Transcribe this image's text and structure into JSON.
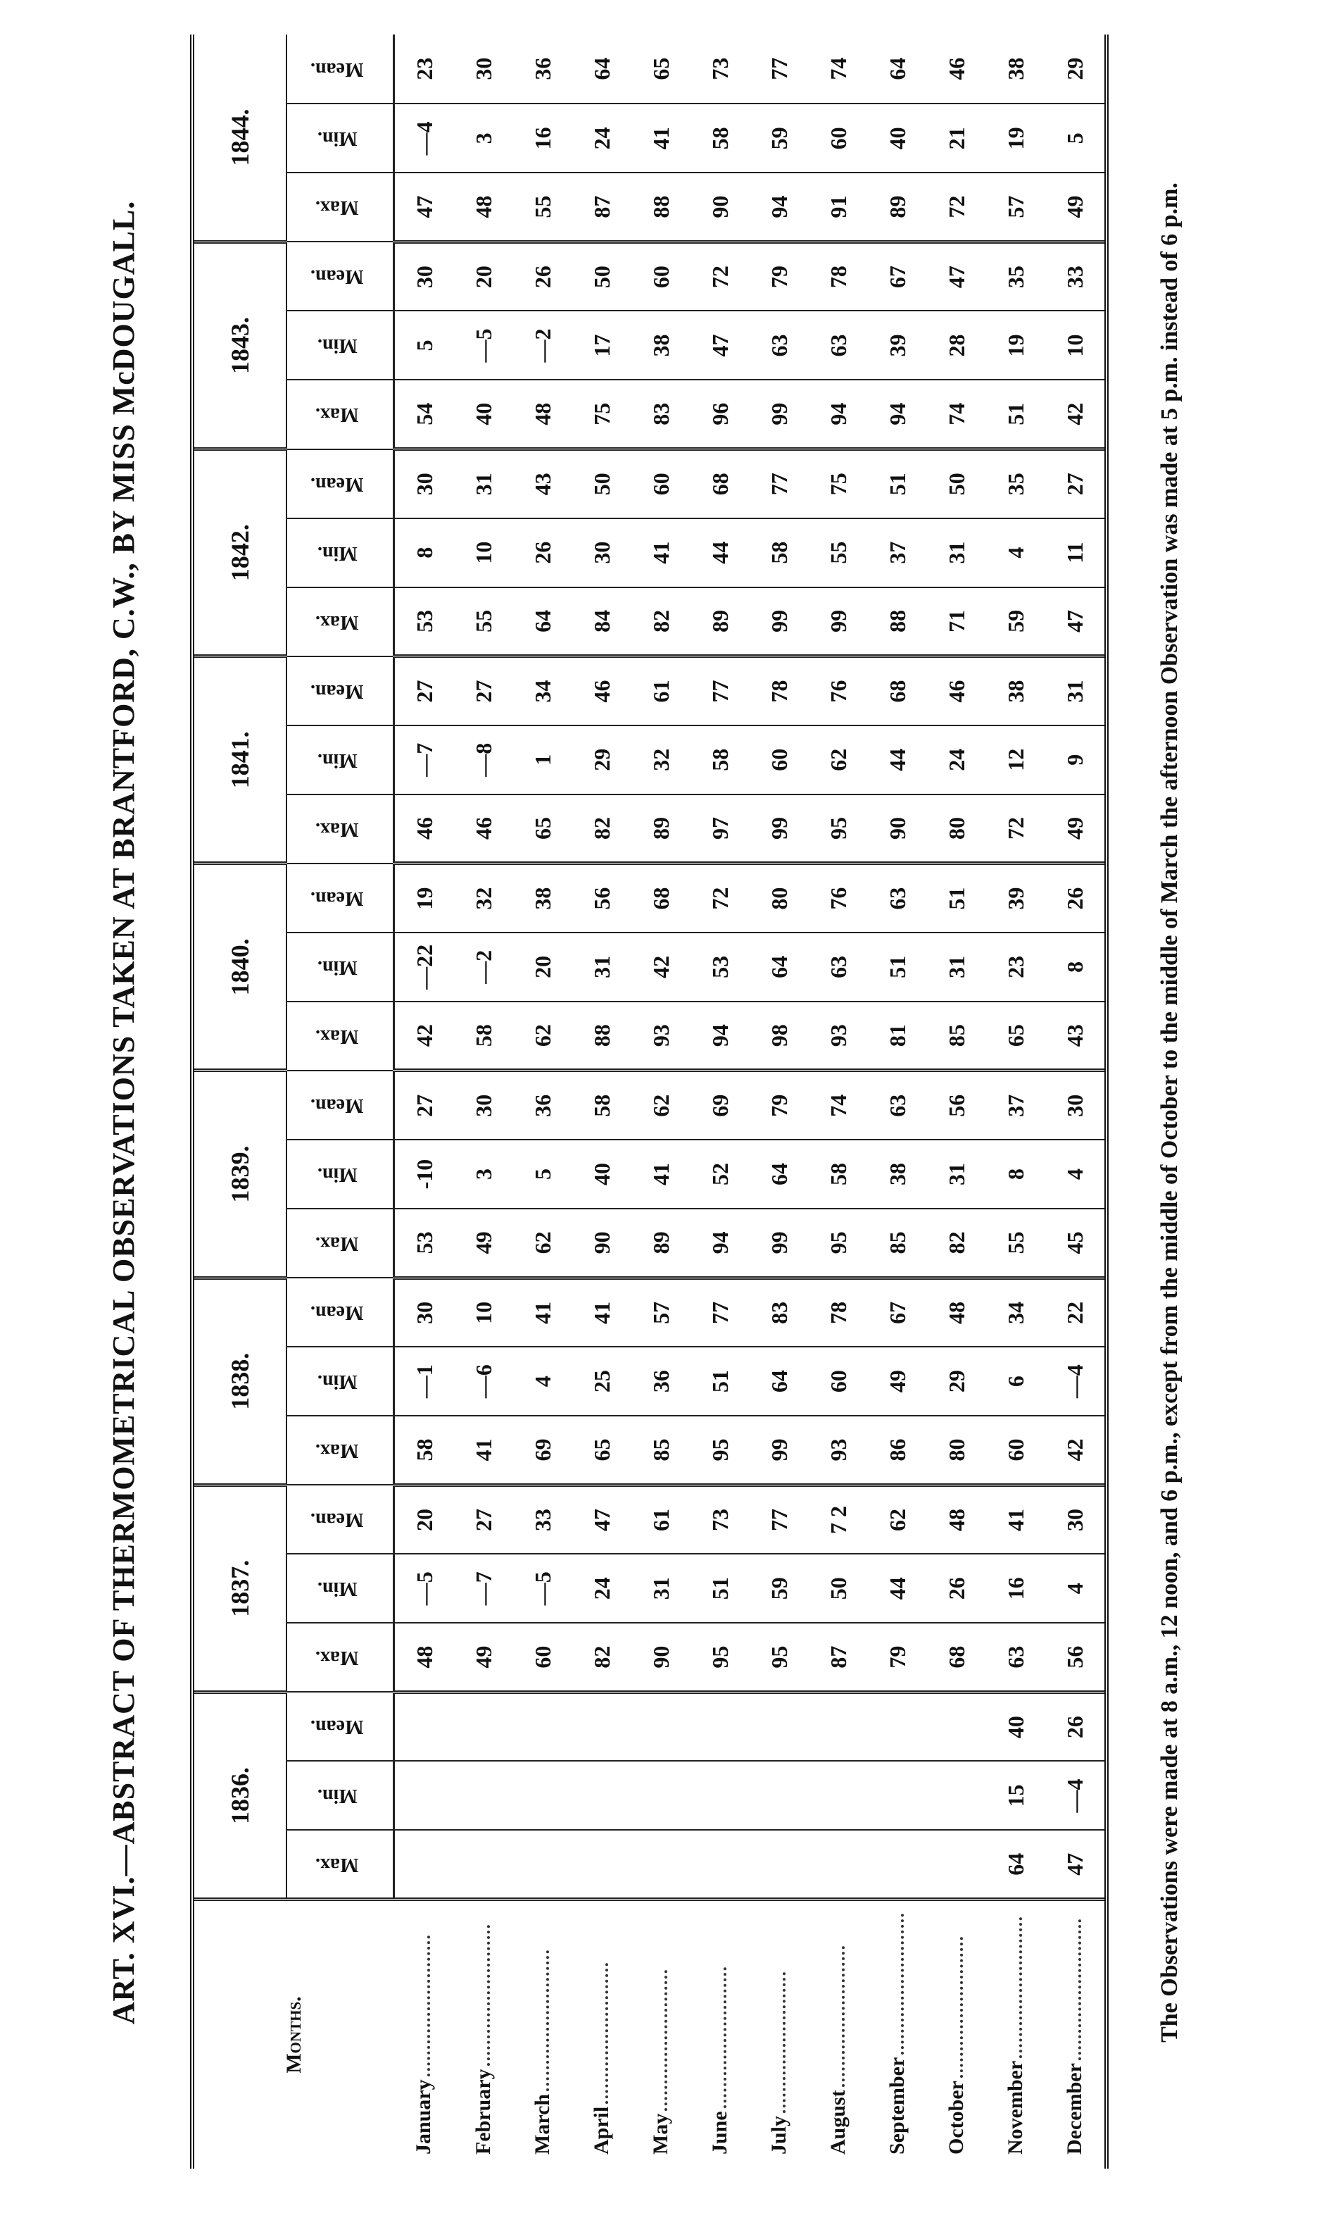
{
  "title": "ART. XVI.—ABSTRACT OF THERMOMETRICAL OBSERVATIONS TAKEN AT BRANTFORD, C.W., BY MISS McDOUGALL.",
  "table": {
    "months_header": "Months.",
    "subheaders": [
      "Max.",
      "Min.",
      "Mean."
    ],
    "years": [
      "1836.",
      "1837.",
      "1838.",
      "1839.",
      "1840.",
      "1841.",
      "1842.",
      "1843.",
      "1844."
    ],
    "rows": [
      {
        "month": "January",
        "values": [
          [
            null,
            null,
            null
          ],
          [
            "48",
            "—5",
            "20"
          ],
          [
            "58",
            "—1",
            "30"
          ],
          [
            "53",
            "-10",
            "27"
          ],
          [
            "42",
            "—22",
            "19"
          ],
          [
            "46",
            "—7",
            "27"
          ],
          [
            "53",
            "8",
            "30"
          ],
          [
            "54",
            "5",
            "30"
          ],
          [
            "47",
            "—4",
            "23"
          ]
        ]
      },
      {
        "month": "February",
        "values": [
          [
            null,
            null,
            null
          ],
          [
            "49",
            "—7",
            "27"
          ],
          [
            "41",
            "—6",
            "10"
          ],
          [
            "49",
            "3",
            "30"
          ],
          [
            "58",
            "—2",
            "32"
          ],
          [
            "46",
            "—8",
            "27"
          ],
          [
            "55",
            "10",
            "31"
          ],
          [
            "40",
            "—5",
            "20"
          ],
          [
            "48",
            "3",
            "30"
          ]
        ]
      },
      {
        "month": "March",
        "values": [
          [
            null,
            null,
            null
          ],
          [
            "60",
            "—5",
            "33"
          ],
          [
            "69",
            "4",
            "41"
          ],
          [
            "62",
            "5",
            "36"
          ],
          [
            "62",
            "20",
            "38"
          ],
          [
            "65",
            "1",
            "34"
          ],
          [
            "64",
            "26",
            "43"
          ],
          [
            "48",
            "—2",
            "26"
          ],
          [
            "55",
            "16",
            "36"
          ]
        ]
      },
      {
        "month": "April",
        "values": [
          [
            null,
            null,
            null
          ],
          [
            "82",
            "24",
            "47"
          ],
          [
            "65",
            "25",
            "41"
          ],
          [
            "90",
            "40",
            "58"
          ],
          [
            "88",
            "31",
            "56"
          ],
          [
            "82",
            "29",
            "46"
          ],
          [
            "84",
            "30",
            "50"
          ],
          [
            "75",
            "17",
            "50"
          ],
          [
            "87",
            "24",
            "64"
          ]
        ]
      },
      {
        "month": "May",
        "values": [
          [
            null,
            null,
            null
          ],
          [
            "90",
            "31",
            "61"
          ],
          [
            "85",
            "36",
            "57"
          ],
          [
            "89",
            "41",
            "62"
          ],
          [
            "93",
            "42",
            "68"
          ],
          [
            "89",
            "32",
            "61"
          ],
          [
            "82",
            "41",
            "60"
          ],
          [
            "83",
            "38",
            "60"
          ],
          [
            "88",
            "41",
            "65"
          ]
        ]
      },
      {
        "month": "June",
        "values": [
          [
            null,
            null,
            null
          ],
          [
            "95",
            "51",
            "73"
          ],
          [
            "95",
            "51",
            "77"
          ],
          [
            "94",
            "52",
            "69"
          ],
          [
            "94",
            "53",
            "72"
          ],
          [
            "97",
            "58",
            "77"
          ],
          [
            "89",
            "44",
            "68"
          ],
          [
            "96",
            "47",
            "72"
          ],
          [
            "90",
            "58",
            "73"
          ]
        ]
      },
      {
        "month": "July",
        "values": [
          [
            null,
            null,
            null
          ],
          [
            "95",
            "59",
            "77"
          ],
          [
            "99",
            "64",
            "83"
          ],
          [
            "99",
            "64",
            "79"
          ],
          [
            "98",
            "64",
            "80"
          ],
          [
            "99",
            "60",
            "78"
          ],
          [
            "99",
            "58",
            "77"
          ],
          [
            "99",
            "63",
            "79"
          ],
          [
            "94",
            "59",
            "77"
          ]
        ]
      },
      {
        "month": "August",
        "values": [
          [
            null,
            null,
            null
          ],
          [
            "87",
            "50",
            "7 2"
          ],
          [
            "93",
            "60",
            "78"
          ],
          [
            "95",
            "58",
            "74"
          ],
          [
            "93",
            "63",
            "76"
          ],
          [
            "95",
            "62",
            "76"
          ],
          [
            "99",
            "55",
            "75"
          ],
          [
            "94",
            "63",
            "78"
          ],
          [
            "91",
            "60",
            "74"
          ]
        ]
      },
      {
        "month": "September",
        "values": [
          [
            null,
            null,
            null
          ],
          [
            "79",
            "44",
            "62"
          ],
          [
            "86",
            "49",
            "67"
          ],
          [
            "85",
            "38",
            "63"
          ],
          [
            "81",
            "51",
            "63"
          ],
          [
            "90",
            "44",
            "68"
          ],
          [
            "88",
            "37",
            "51"
          ],
          [
            "94",
            "39",
            "67"
          ],
          [
            "89",
            "40",
            "64"
          ]
        ]
      },
      {
        "month": "October",
        "values": [
          [
            null,
            null,
            null
          ],
          [
            "68",
            "26",
            "48"
          ],
          [
            "80",
            "29",
            "48"
          ],
          [
            "82",
            "31",
            "56"
          ],
          [
            "85",
            "31",
            "51"
          ],
          [
            "80",
            "24",
            "46"
          ],
          [
            "71",
            "31",
            "50"
          ],
          [
            "74",
            "28",
            "47"
          ],
          [
            "72",
            "21",
            "46"
          ]
        ]
      },
      {
        "month": "November",
        "values": [
          [
            "64",
            "15",
            "40"
          ],
          [
            "63",
            "16",
            "41"
          ],
          [
            "60",
            "6",
            "34"
          ],
          [
            "55",
            "8",
            "37"
          ],
          [
            "65",
            "23",
            "39"
          ],
          [
            "72",
            "12",
            "38"
          ],
          [
            "59",
            "4",
            "35"
          ],
          [
            "51",
            "19",
            "35"
          ],
          [
            "57",
            "19",
            "38"
          ]
        ]
      },
      {
        "month": "December",
        "values": [
          [
            "47",
            "—4",
            "26"
          ],
          [
            "56",
            "4",
            "30"
          ],
          [
            "42",
            "—4",
            "22"
          ],
          [
            "45",
            "4",
            "30"
          ],
          [
            "43",
            "8",
            "26"
          ],
          [
            "49",
            "9",
            "31"
          ],
          [
            "47",
            "11",
            "27"
          ],
          [
            "42",
            "10",
            "33"
          ],
          [
            "49",
            "5",
            "29"
          ]
        ]
      }
    ]
  },
  "footnote": "The Observations were made at 8 a.m., 12 noon, and 6 p.m., except from the middle of October to the middle of March the afternoon Observation was made at 5 p.m. instead of 6 p.m."
}
